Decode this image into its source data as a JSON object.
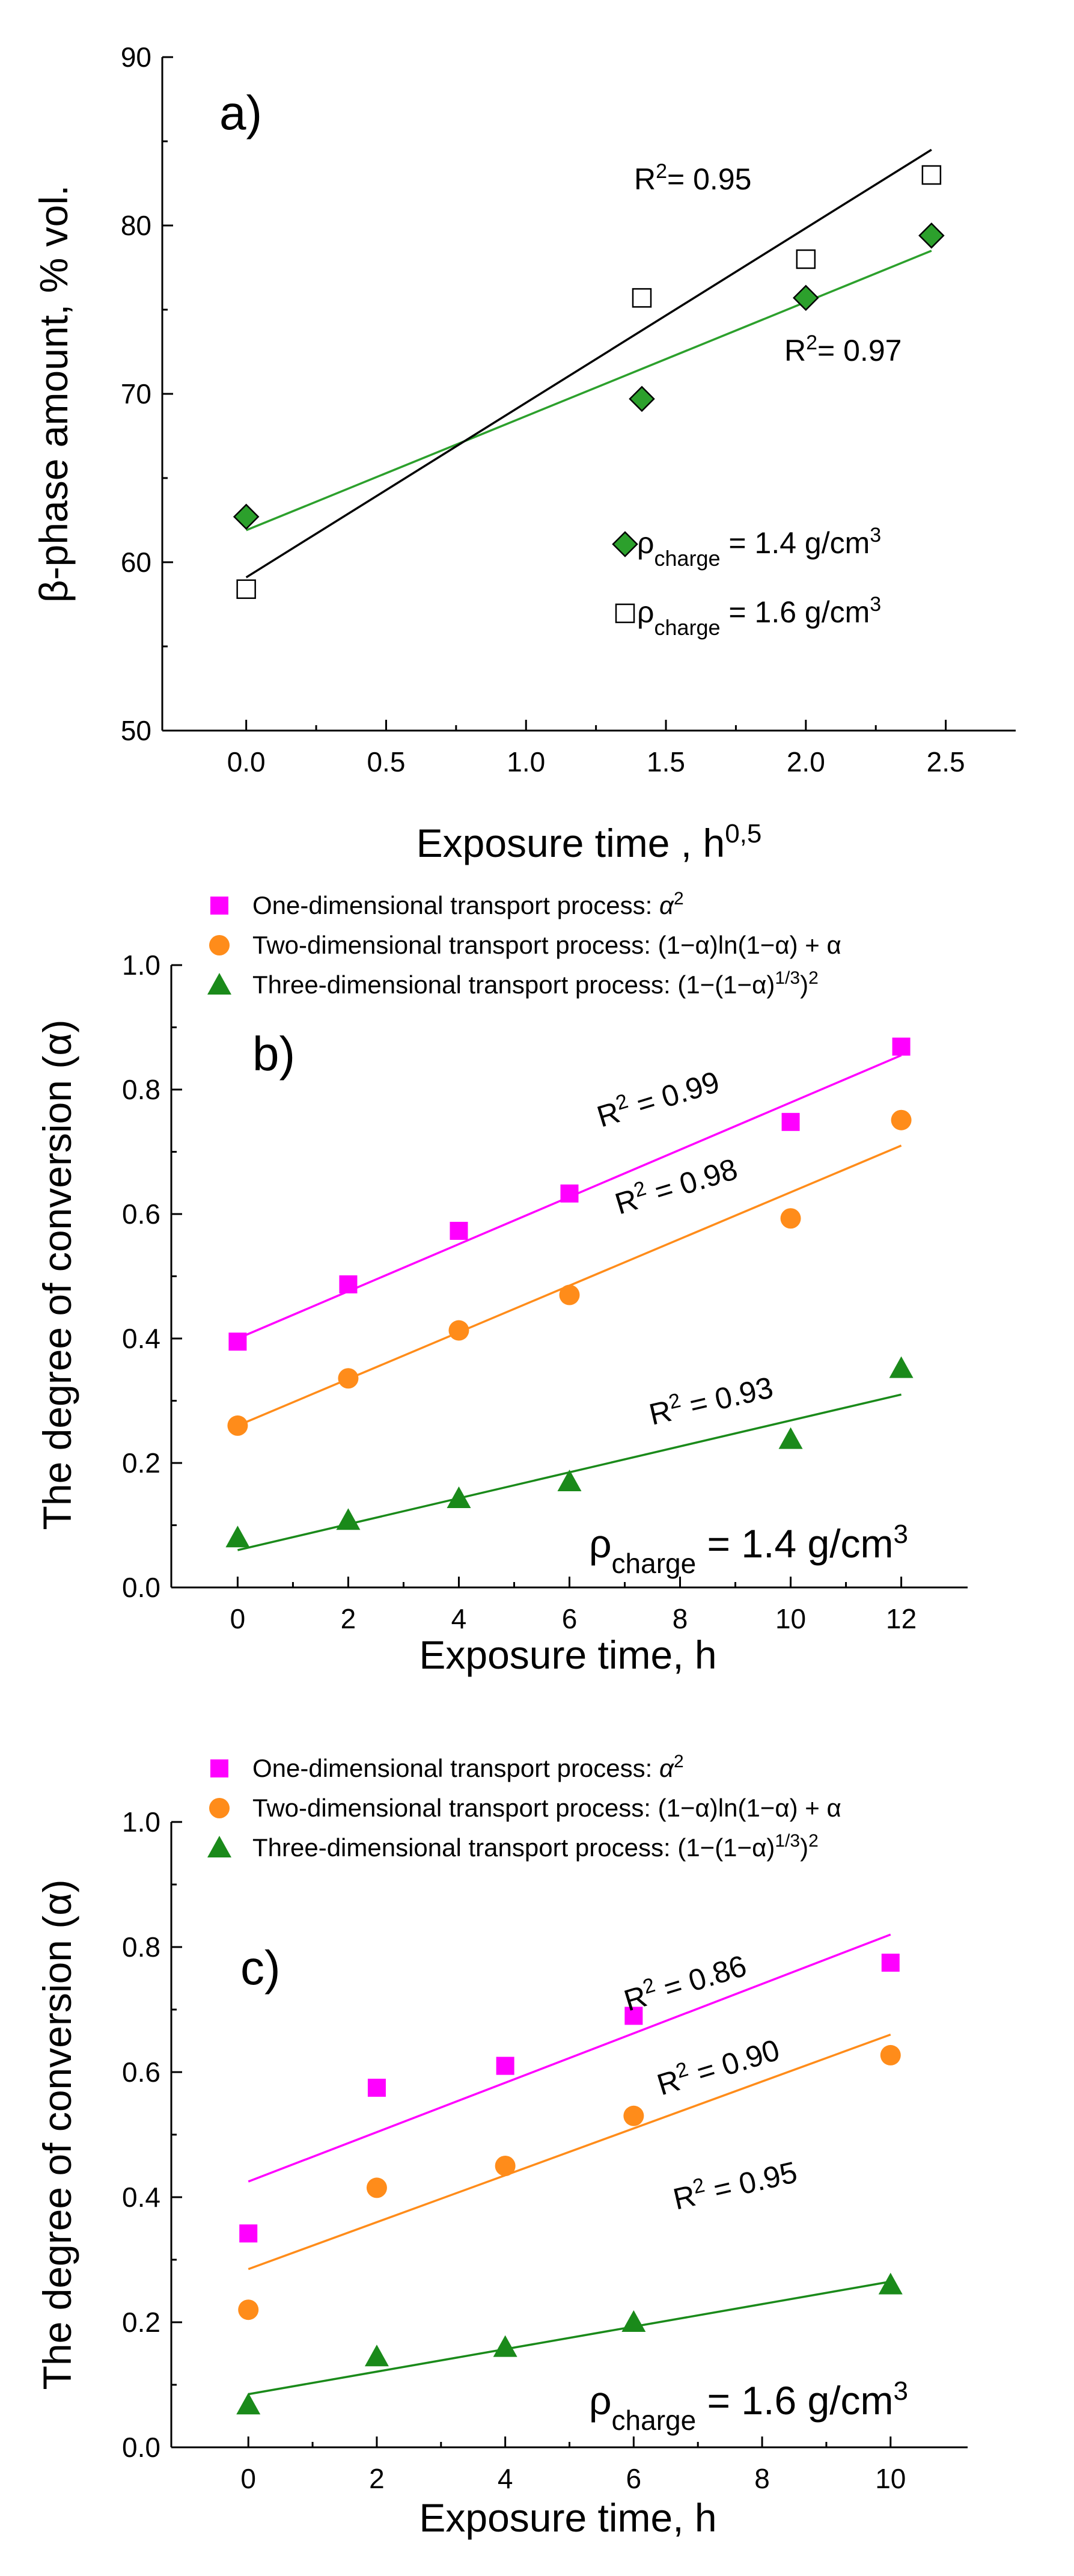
{
  "chart_data": [
    {
      "type": "scatter",
      "panel_label": "a)",
      "xlabel": "Exposure time , h",
      "xlabel_sup": "0,5",
      "ylabel": "β-phase amount, % vol.",
      "xlim": [
        -0.3,
        2.75
      ],
      "ylim": [
        50,
        90
      ],
      "xticks": [
        "0.0",
        "0.5",
        "1.0",
        "1.5",
        "2.0",
        "2.5"
      ],
      "xtick_values": [
        0,
        0.5,
        1.0,
        1.5,
        2.0,
        2.5
      ],
      "yticks": [
        "50",
        "60",
        "70",
        "80",
        "90"
      ],
      "ytick_values": [
        50,
        60,
        70,
        80,
        90
      ],
      "series": [
        {
          "name": "ρcharge = 1.4 g/cm3",
          "label_main": "ρ",
          "label_sub": "charge",
          "label_rest": " = 1.4 g/cm",
          "label_sup": "3",
          "marker": "diamond",
          "color": "#2ca02c",
          "x": [
            0,
            1.414,
            2.0,
            2.449
          ],
          "y": [
            62.7,
            69.7,
            75.7,
            79.4
          ],
          "fit": {
            "x": [
              0,
              2.449
            ],
            "y": [
              61.9,
              78.5
            ],
            "color": "#2ca02c"
          },
          "r2_base": "R",
          "r2_sup": "2",
          "r2_value": "= 0.97"
        },
        {
          "name": "ρcharge = 1.6 g/cm3",
          "label_main": "ρ",
          "label_sub": "charge",
          "label_rest": " = 1.6 g/cm",
          "label_sup": "3",
          "marker": "square-open",
          "color": "#000000",
          "x": [
            0,
            1.414,
            2.0,
            2.449
          ],
          "y": [
            58.4,
            75.7,
            78.0,
            83.0
          ],
          "fit": {
            "x": [
              0,
              2.449
            ],
            "y": [
              59.1,
              84.5
            ],
            "color": "#000000"
          },
          "r2_base": "R",
          "r2_sup": "2",
          "r2_value": "= 0.95"
        }
      ]
    },
    {
      "type": "scatter",
      "panel_label": "b)",
      "xlabel": "Exposure time, h",
      "ylabel": "The degree of conversion (α)",
      "condition_main": "ρ",
      "condition_sub": "charge",
      "condition_rest": " = 1.4 g/cm",
      "condition_sup": "3",
      "xlim": [
        -1.2,
        13.2
      ],
      "ylim": [
        0.0,
        1.0
      ],
      "xticks": [
        "0",
        "2",
        "4",
        "6",
        "8",
        "10",
        "12"
      ],
      "xtick_values": [
        0,
        2,
        4,
        6,
        8,
        10,
        12
      ],
      "yticks": [
        "0.0",
        "0.2",
        "0.4",
        "0.6",
        "0.8",
        "1.0"
      ],
      "ytick_values": [
        0.0,
        0.2,
        0.4,
        0.6,
        0.8,
        1.0
      ],
      "series": [
        {
          "name": "One-dimensional transport process: α 2",
          "legend_text": "One-dimensional transport process: ",
          "legend_expr": "α",
          "legend_expr_sup": "2",
          "marker": "square",
          "color": "#ff00ff",
          "x": [
            0,
            2,
            4,
            6,
            10,
            12
          ],
          "y": [
            0.395,
            0.487,
            0.573,
            0.633,
            0.748,
            0.869
          ],
          "fit": {
            "x": [
              0,
              12
            ],
            "y": [
              0.4,
              0.855
            ]
          },
          "r2_base": "R",
          "r2_sup": "2",
          "r2_value": " = 0.99"
        },
        {
          "name": "Two-dimensional transport process: (1−α)ln(1−α) + α",
          "legend_text": "Two-dimensional transport process: ",
          "legend_expr": "(1−α)ln(1−α) + α",
          "legend_expr_sup": "",
          "marker": "circle",
          "color": "#ff8c1a",
          "x": [
            0,
            2,
            4,
            6,
            10,
            12
          ],
          "y": [
            0.26,
            0.336,
            0.413,
            0.47,
            0.593,
            0.751
          ],
          "fit": {
            "x": [
              0,
              12
            ],
            "y": [
              0.26,
              0.71
            ]
          },
          "r2_base": "R",
          "r2_sup": "2",
          "r2_value": " = 0.98"
        },
        {
          "name": "Three-dimensional transport process: (1−(1−α)1/3)2",
          "legend_text": "Three-dimensional transport process: ",
          "legend_expr": "(1−(1−α)",
          "legend_expr_sup": "1/3",
          "legend_expr_end": ")",
          "legend_expr_sup2": "2",
          "marker": "triangle",
          "color": "#1a8a1a",
          "x": [
            0,
            2,
            4,
            6,
            10,
            12
          ],
          "y": [
            0.08,
            0.108,
            0.143,
            0.17,
            0.238,
            0.352
          ],
          "fit": {
            "x": [
              0,
              12
            ],
            "y": [
              0.06,
              0.31
            ]
          },
          "r2_base": "R",
          "r2_sup": "2",
          "r2_value": " = 0.93"
        }
      ]
    },
    {
      "type": "scatter",
      "panel_label": "c)",
      "xlabel": "Exposure time, h",
      "ylabel": "The degree of conversion (α)",
      "condition_main": "ρ",
      "condition_sub": "charge",
      "condition_rest": " = 1.6 g/cm",
      "condition_sup": "3",
      "xlim": [
        -1.2,
        11.2
      ],
      "ylim": [
        0.0,
        1.0
      ],
      "xticks": [
        "0",
        "2",
        "4",
        "6",
        "8",
        "10"
      ],
      "xtick_values": [
        0,
        2,
        4,
        6,
        8,
        10
      ],
      "yticks": [
        "0.0",
        "0.2",
        "0.4",
        "0.6",
        "0.8",
        "1.0"
      ],
      "ytick_values": [
        0.0,
        0.2,
        0.4,
        0.6,
        0.8,
        1.0
      ],
      "series": [
        {
          "name": "One-dimensional transport process: α 2",
          "legend_text": "One-dimensional transport process: ",
          "legend_expr": "α",
          "legend_expr_sup": "2",
          "marker": "square",
          "color": "#ff00ff",
          "x": [
            0,
            2,
            4,
            6,
            10
          ],
          "y": [
            0.342,
            0.575,
            0.61,
            0.69,
            0.775
          ],
          "fit": {
            "x": [
              0,
              10
            ],
            "y": [
              0.425,
              0.82
            ]
          },
          "r2_base": "R",
          "r2_sup": "2",
          "r2_value": " = 0.86"
        },
        {
          "name": "Two-dimensional transport process: (1−α)ln(1−α) + α",
          "legend_text": "Two-dimensional transport process: ",
          "legend_expr": "(1−α)ln(1−α) + α",
          "legend_expr_sup": "",
          "marker": "circle",
          "color": "#ff8c1a",
          "x": [
            0,
            2,
            4,
            6,
            10
          ],
          "y": [
            0.22,
            0.415,
            0.45,
            0.53,
            0.627
          ],
          "fit": {
            "x": [
              0,
              10
            ],
            "y": [
              0.285,
              0.66
            ]
          },
          "r2_base": "R",
          "r2_sup": "2",
          "r2_value": " = 0.90"
        },
        {
          "name": "Three-dimensional transport process: (1−(1−α)1/3)2",
          "legend_text": "Three-dimensional transport process: ",
          "legend_expr": "(1−(1−α)",
          "legend_expr_sup": "1/3",
          "legend_expr_end": ")",
          "legend_expr_sup2": "2",
          "marker": "triangle",
          "color": "#1a8a1a",
          "x": [
            0,
            2,
            4,
            6,
            10
          ],
          "y": [
            0.068,
            0.145,
            0.16,
            0.2,
            0.26
          ],
          "fit": {
            "x": [
              0,
              10
            ],
            "y": [
              0.085,
              0.265
            ]
          },
          "r2_base": "R",
          "r2_sup": "2",
          "r2_value": " = 0.95"
        }
      ]
    }
  ]
}
